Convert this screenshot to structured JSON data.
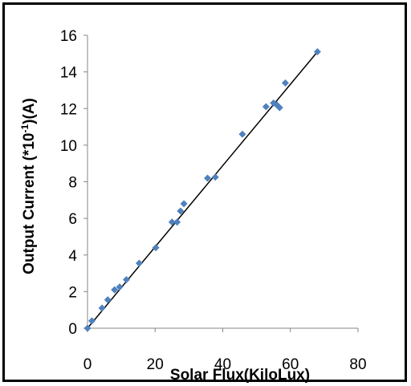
{
  "chart_data": {
    "type": "scatter",
    "title": "",
    "xlabel": "Solar Flux(KiloLux)",
    "ylabel": "Output Current (*10",
    "ylabel_sup": "-1",
    "ylabel_tail": ")(A)",
    "xlim": [
      0,
      80
    ],
    "ylim": [
      0,
      16
    ],
    "x_ticks": [
      "0",
      "20",
      "40",
      "60",
      "80"
    ],
    "y_ticks": [
      "0",
      "2",
      "4",
      "6",
      "8",
      "10",
      "12",
      "14",
      "16"
    ],
    "grid": false,
    "legend": "none",
    "marker_color": "#4F81BD",
    "line_color": "#000000",
    "series": [
      {
        "x": [
          0,
          1.3,
          4.3,
          6,
          8,
          9.5,
          11.5,
          15.3,
          20.2,
          25,
          26.5,
          27.5,
          28.5,
          35.5,
          37.8,
          45.8,
          52.8,
          55,
          56,
          56.8,
          58.5,
          68
        ],
        "y": [
          0,
          0.4,
          1.1,
          1.55,
          2.1,
          2.25,
          2.65,
          3.55,
          4.4,
          5.8,
          5.8,
          6.4,
          6.8,
          8.2,
          8.25,
          10.6,
          12.1,
          12.3,
          12.2,
          12.05,
          13.4,
          15.1
        ]
      }
    ],
    "trendline": {
      "type": "linear",
      "x": [
        0,
        68
      ],
      "y": [
        0,
        15.1
      ]
    }
  }
}
